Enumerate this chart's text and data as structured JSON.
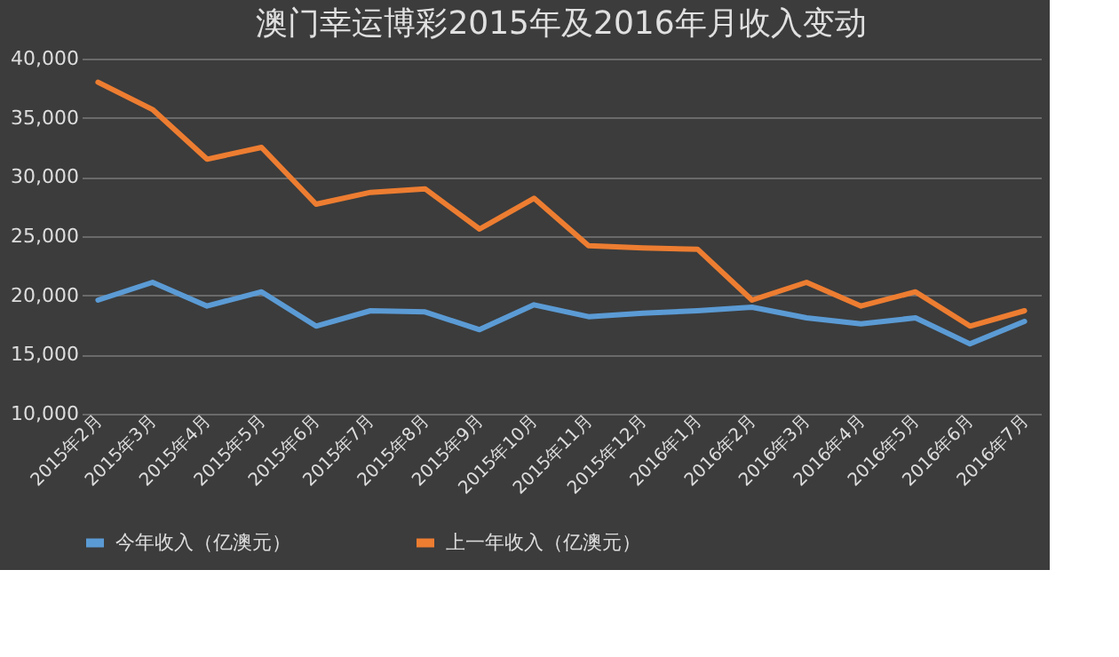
{
  "chart_data": {
    "type": "line",
    "title": "澳门幸运博彩2015年及2016年月收入变动",
    "categories": [
      "2015年2月",
      "2015年3月",
      "2015年4月",
      "2015年5月",
      "2015年6月",
      "2015年7月",
      "2015年8月",
      "2015年9月",
      "2015年10月",
      "2015年11月",
      "2015年12月",
      "2016年1月",
      "2016年2月",
      "2016年3月",
      "2016年4月",
      "2016年5月",
      "2016年6月",
      "2016年7月"
    ],
    "series": [
      {
        "name": "今年收入（亿澳元）",
        "color": "#5b9bd5",
        "values": [
          19600,
          21100,
          19100,
          20300,
          17400,
          18700,
          18600,
          17100,
          19200,
          18200,
          18500,
          18700,
          19000,
          18100,
          17600,
          18100,
          15900,
          17800
        ]
      },
      {
        "name": "上一年收入（亿澳元）",
        "color": "#ed7d31",
        "values": [
          38000,
          35700,
          31500,
          32500,
          27700,
          28700,
          29000,
          25600,
          28200,
          24200,
          24000,
          23900,
          19600,
          21100,
          19100,
          20300,
          17400,
          18700
        ]
      }
    ],
    "ylim": [
      10000,
      40000
    ],
    "yticks": [
      {
        "value": 10000,
        "label": "10,000"
      },
      {
        "value": 15000,
        "label": "15,000"
      },
      {
        "value": 20000,
        "label": "20,000"
      },
      {
        "value": 25000,
        "label": "25,000"
      },
      {
        "value": 30000,
        "label": "30,000"
      },
      {
        "value": 35000,
        "label": "35,000"
      },
      {
        "value": 40000,
        "label": "40,000"
      }
    ],
    "grid": "y",
    "legend": "bottom",
    "marker": "none",
    "line_style": "solid"
  }
}
